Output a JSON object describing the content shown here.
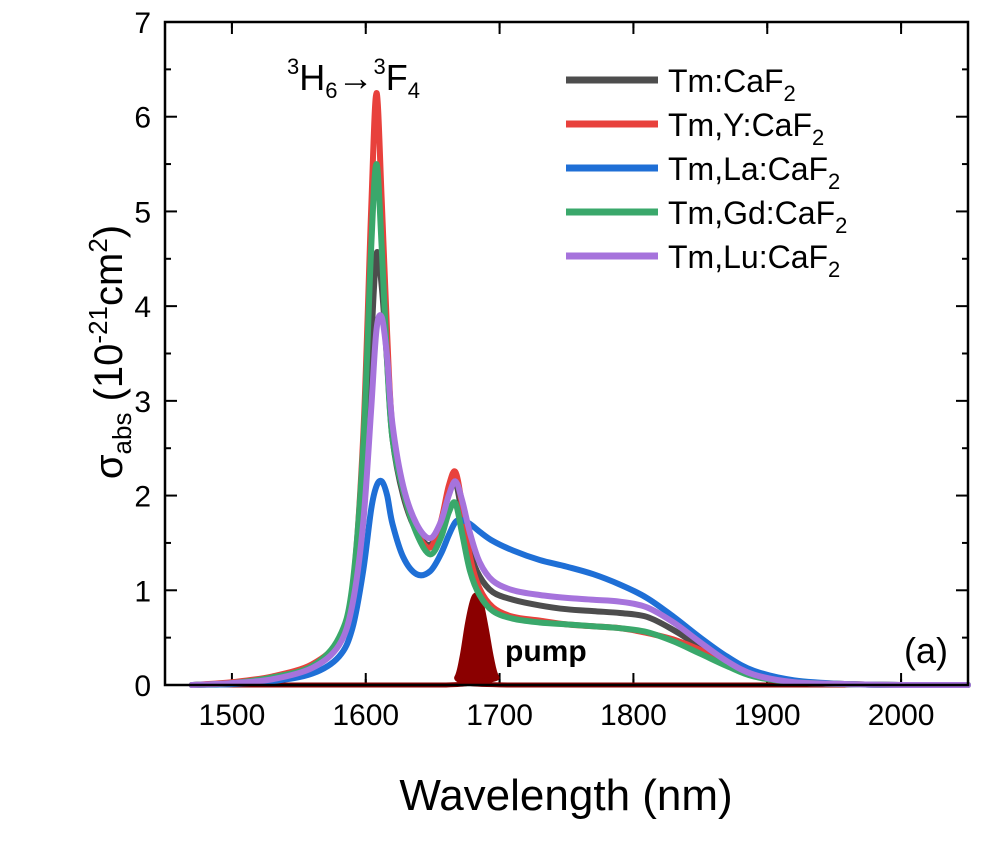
{
  "chart_data": {
    "type": "line",
    "annotation_transition": {
      "sup1": "3",
      "a": "H",
      "sub1": "6",
      "arrow": "→",
      "sup2": "3",
      "b": "F",
      "sub2": "4"
    },
    "panel_label": "(a)",
    "xlabel": "Wavelength (nm)",
    "ylabel": {
      "sigma": "σ",
      "sub": "abs",
      "open": " (10",
      "exp": "-21",
      "mid": "cm",
      "sq": "2",
      "close": ")"
    },
    "xlim": [
      1450,
      2050
    ],
    "ylim": [
      0,
      7
    ],
    "xticks": [
      1500,
      1600,
      1700,
      1800,
      1900,
      2000
    ],
    "yticks": [
      0,
      1,
      2,
      3,
      4,
      5,
      6,
      7
    ],
    "x": [
      1470,
      1500,
      1530,
      1560,
      1580,
      1590,
      1598,
      1604,
      1608,
      1612,
      1616,
      1620,
      1628,
      1638,
      1648,
      1656,
      1662,
      1667,
      1672,
      1678,
      1685,
      1695,
      1710,
      1730,
      1750,
      1770,
      1790,
      1810,
      1830,
      1850,
      1870,
      1890,
      1920,
      1960,
      2000,
      2050
    ],
    "series": [
      {
        "name": "Tm:CaF2",
        "label_base": "Tm:CaF",
        "label_sub": "2",
        "color": "#4d4d4d",
        "values": [
          0,
          0.02,
          0.07,
          0.2,
          0.45,
          0.9,
          2.0,
          3.6,
          4.55,
          4.2,
          3.4,
          2.6,
          2.0,
          1.62,
          1.48,
          1.7,
          2.02,
          2.15,
          1.8,
          1.4,
          1.15,
          0.98,
          0.9,
          0.84,
          0.8,
          0.78,
          0.76,
          0.72,
          0.58,
          0.4,
          0.22,
          0.1,
          0.03,
          0.01,
          0,
          0
        ]
      },
      {
        "name": "Tm,Y:CaF2",
        "label_base": "Tm,Y:CaF",
        "label_sub": "2",
        "color": "#e8413c",
        "values": [
          0,
          0.03,
          0.09,
          0.22,
          0.48,
          1.0,
          2.6,
          5.0,
          6.25,
          5.1,
          3.7,
          2.7,
          2.05,
          1.62,
          1.45,
          1.72,
          2.1,
          2.25,
          1.9,
          1.35,
          1.02,
          0.82,
          0.72,
          0.68,
          0.64,
          0.62,
          0.6,
          0.55,
          0.48,
          0.37,
          0.22,
          0.1,
          0.03,
          0.01,
          0,
          0
        ]
      },
      {
        "name": "Tm,La:CaF2",
        "label_base": "Tm,La:CaF",
        "label_sub": "2",
        "color": "#1f6fd6",
        "values": [
          0,
          0.01,
          0.04,
          0.12,
          0.3,
          0.6,
          1.2,
          1.85,
          2.1,
          2.15,
          2.0,
          1.7,
          1.35,
          1.17,
          1.2,
          1.38,
          1.58,
          1.72,
          1.74,
          1.7,
          1.62,
          1.52,
          1.42,
          1.32,
          1.25,
          1.17,
          1.06,
          0.92,
          0.72,
          0.5,
          0.3,
          0.15,
          0.05,
          0.01,
          0,
          0
        ]
      },
      {
        "name": "Tm,Gd:CaF2",
        "label_base": "Tm,Gd:CaF",
        "label_sub": "2",
        "color": "#3aa86b",
        "values": [
          0,
          0.02,
          0.08,
          0.2,
          0.5,
          1.05,
          2.5,
          4.6,
          5.5,
          4.6,
          3.4,
          2.6,
          2.05,
          1.6,
          1.38,
          1.55,
          1.82,
          1.92,
          1.6,
          1.2,
          0.95,
          0.78,
          0.7,
          0.66,
          0.64,
          0.62,
          0.6,
          0.56,
          0.46,
          0.33,
          0.2,
          0.09,
          0.03,
          0.01,
          0,
          0
        ]
      },
      {
        "name": "Tm,Lu:CaF2",
        "label_base": "Tm,Lu:CaF",
        "label_sub": "2",
        "color": "#a673dc",
        "values": [
          0,
          0.02,
          0.06,
          0.18,
          0.42,
          0.85,
          1.7,
          2.9,
          3.75,
          3.88,
          3.45,
          2.75,
          2.1,
          1.7,
          1.55,
          1.72,
          2.0,
          2.15,
          1.95,
          1.6,
          1.3,
          1.1,
          1.0,
          0.95,
          0.92,
          0.9,
          0.88,
          0.82,
          0.66,
          0.45,
          0.25,
          0.11,
          0.03,
          0.01,
          0,
          0
        ]
      }
    ],
    "pump": {
      "label": "pump",
      "color": "#8b0000",
      "x": [
        1478,
        1660,
        1668,
        1672,
        1676,
        1680,
        1683,
        1686,
        1690,
        1694,
        1698,
        1706,
        2050
      ],
      "values": [
        0,
        0,
        0.08,
        0.3,
        0.65,
        0.9,
        0.95,
        0.88,
        0.6,
        0.28,
        0.08,
        0,
        0
      ]
    },
    "legend_position": "top-right",
    "grid": false
  }
}
